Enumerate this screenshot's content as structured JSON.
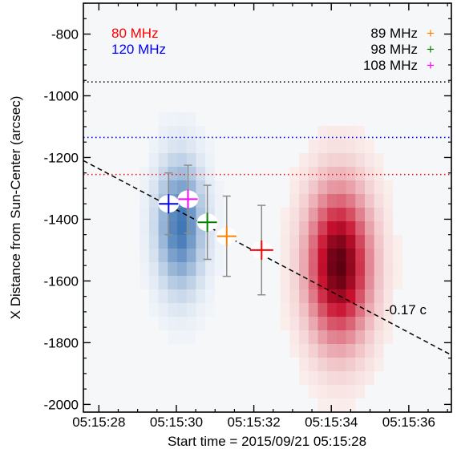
{
  "chart_data": {
    "type": "heatmap",
    "xlabel": "Start time = 2015/09/21 05:15:28",
    "ylabel": "X Distance from Sun-Center (arcsec)",
    "xlim": [
      27.6,
      37.1
    ],
    "ylim": [
      -2025,
      -700
    ],
    "xticks": [
      {
        "v": 28,
        "label": "05:15:28"
      },
      {
        "v": 30,
        "label": "05:15:30"
      },
      {
        "v": 32,
        "label": "05:15:32"
      },
      {
        "v": 34,
        "label": "05:15:34"
      },
      {
        "v": 36,
        "label": "05:15:36"
      }
    ],
    "yticks": [
      {
        "v": -800,
        "label": "-800"
      },
      {
        "v": -1000,
        "label": "-1000"
      },
      {
        "v": -1200,
        "label": "-1200"
      },
      {
        "v": -1400,
        "label": "-1400"
      },
      {
        "v": -1600,
        "label": "-1600"
      },
      {
        "v": -1800,
        "label": "-1800"
      },
      {
        "v": -2000,
        "label": "-2000"
      }
    ],
    "emission": [
      {
        "label": "120 MHz",
        "color": "#1f5fa8",
        "center_time": 30.1,
        "center_x": -1420,
        "peak": 0.85
      },
      {
        "label": "80 MHz",
        "color": "#b3001a",
        "center_time": 34.2,
        "center_x": -1550,
        "peak": 1.0
      }
    ],
    "hlines": [
      {
        "y": -955,
        "color": "#000000",
        "style": "dotted"
      },
      {
        "y": -1135,
        "color": "#0000ff",
        "style": "dotted"
      },
      {
        "y": -1255,
        "color": "#ff0000",
        "style": "dotted"
      }
    ],
    "points": [
      {
        "t": 29.8,
        "x": -1350,
        "color": "#0000ff",
        "xerr": 0.25,
        "yerr": 100
      },
      {
        "t": 30.3,
        "x": -1335,
        "color": "#ff00ff",
        "xerr": 0.25,
        "yerr": 110
      },
      {
        "t": 30.8,
        "x": -1410,
        "color": "#008000",
        "xerr": 0.25,
        "yerr": 120
      },
      {
        "t": 31.3,
        "x": -1455,
        "color": "#ff8000",
        "xerr": 0.25,
        "yerr": 130
      },
      {
        "t": 32.2,
        "x": -1500,
        "color": "#ff0000",
        "xerr": 0.3,
        "yerr": 145
      }
    ],
    "fit_line": {
      "x": [
        27.6,
        37.1
      ],
      "y": [
        -1210,
        -1840
      ],
      "label": "-0.17 c"
    },
    "legend_left": [
      {
        "label": "80 MHz",
        "color": "#ff0000"
      },
      {
        "label": "120 MHz",
        "color": "#0000ff"
      }
    ],
    "legend_right": [
      {
        "label": "89 MHz",
        "color": "#ff8000",
        "symbol": "+"
      },
      {
        "label": "98 MHz",
        "color": "#008000",
        "symbol": "+"
      },
      {
        "label": "108 MHz",
        "color": "#ff00ff",
        "symbol": "+"
      }
    ]
  }
}
